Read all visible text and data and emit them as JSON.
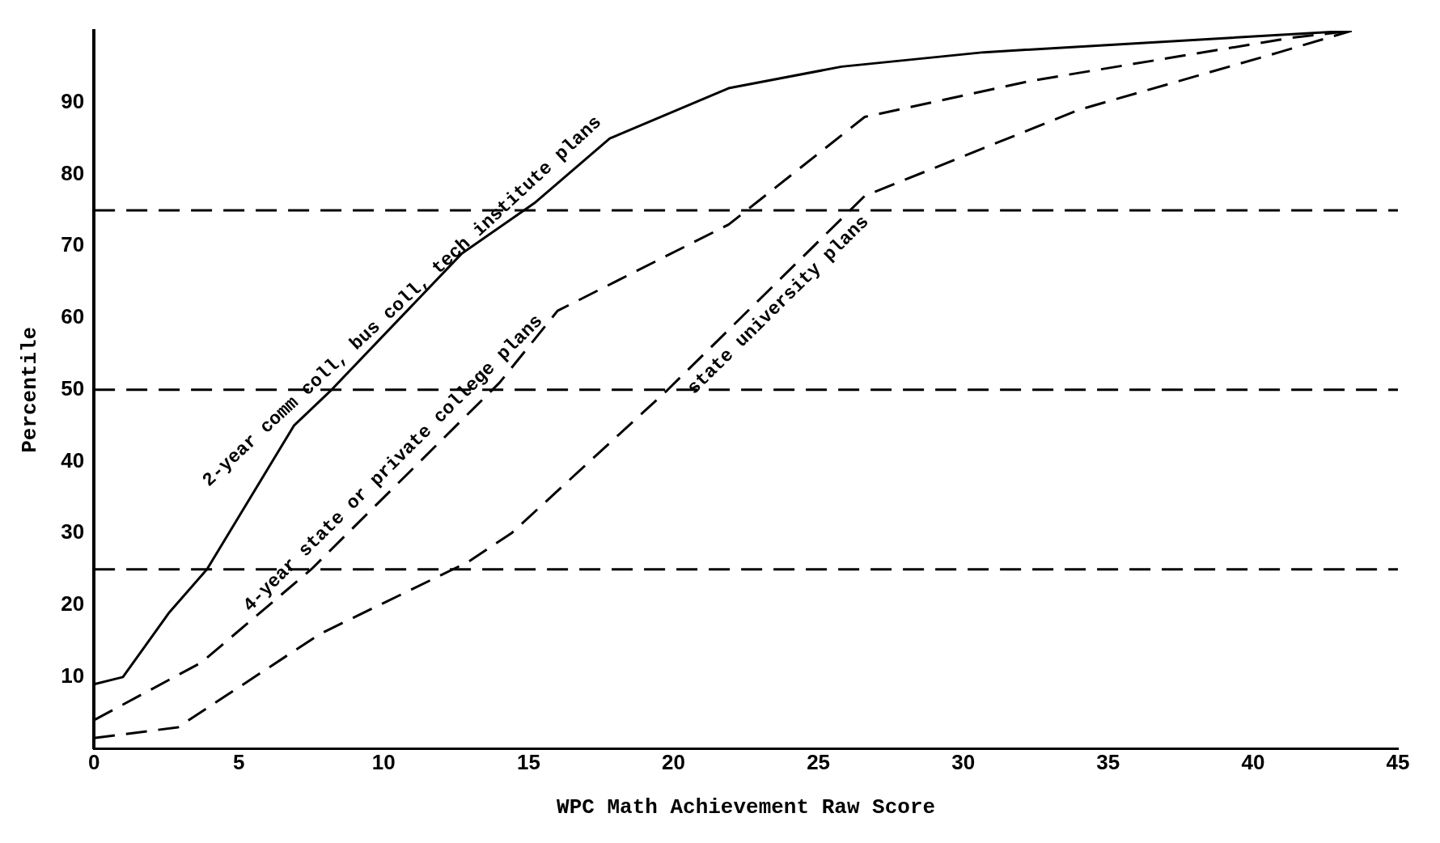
{
  "chart_data": {
    "type": "line",
    "xlabel": "WPC Math Achievement Raw Score",
    "ylabel": "Percentile",
    "xlim": [
      0,
      45
    ],
    "xticks": [
      0,
      5,
      10,
      15,
      20,
      25,
      30,
      35,
      40,
      45
    ],
    "ylim": [
      0,
      100
    ],
    "yticks": [
      10,
      20,
      30,
      40,
      50,
      60,
      70,
      80,
      90
    ],
    "grid": false,
    "legend": false,
    "marker": "none",
    "ref_lines": [
      {
        "axis": "y",
        "value": 25,
        "color": "#000000",
        "line_style": "dashed"
      },
      {
        "axis": "y",
        "value": 50,
        "color": "#000000",
        "line_style": "dashed"
      },
      {
        "axis": "y",
        "value": 75,
        "color": "#000000",
        "line_style": "dashed"
      }
    ],
    "series": [
      {
        "name": "2-year comm coll, bus coll, tech institute plans",
        "color": "#000000",
        "line_style": "solid",
        "x": [
          0,
          1,
          2.6,
          3.9,
          6.9,
          8.2,
          12.7,
          15.2,
          17.8,
          21.9,
          25.8,
          30.7,
          43.4
        ],
        "values": [
          9,
          10,
          19,
          25,
          45,
          50,
          69,
          76,
          85,
          92,
          95,
          97,
          100
        ]
      },
      {
        "name": "4-year state or private college plans",
        "color": "#000000",
        "line_style": "dashed",
        "x": [
          0,
          3.7,
          7.5,
          14,
          16,
          21.9,
          26.6,
          32.3,
          41.3,
          43.4
        ],
        "values": [
          4,
          12,
          25,
          51,
          61,
          73,
          88,
          93,
          99,
          100
        ]
      },
      {
        "name": "state university plans",
        "color": "#000000",
        "line_style": "dashed",
        "x": [
          0,
          2.9,
          7.8,
          12.9,
          14.4,
          19.8,
          26.6,
          34,
          40.9,
          43.4
        ],
        "values": [
          1.5,
          3,
          16,
          26,
          30,
          50,
          77,
          89,
          97,
          100
        ]
      }
    ]
  }
}
